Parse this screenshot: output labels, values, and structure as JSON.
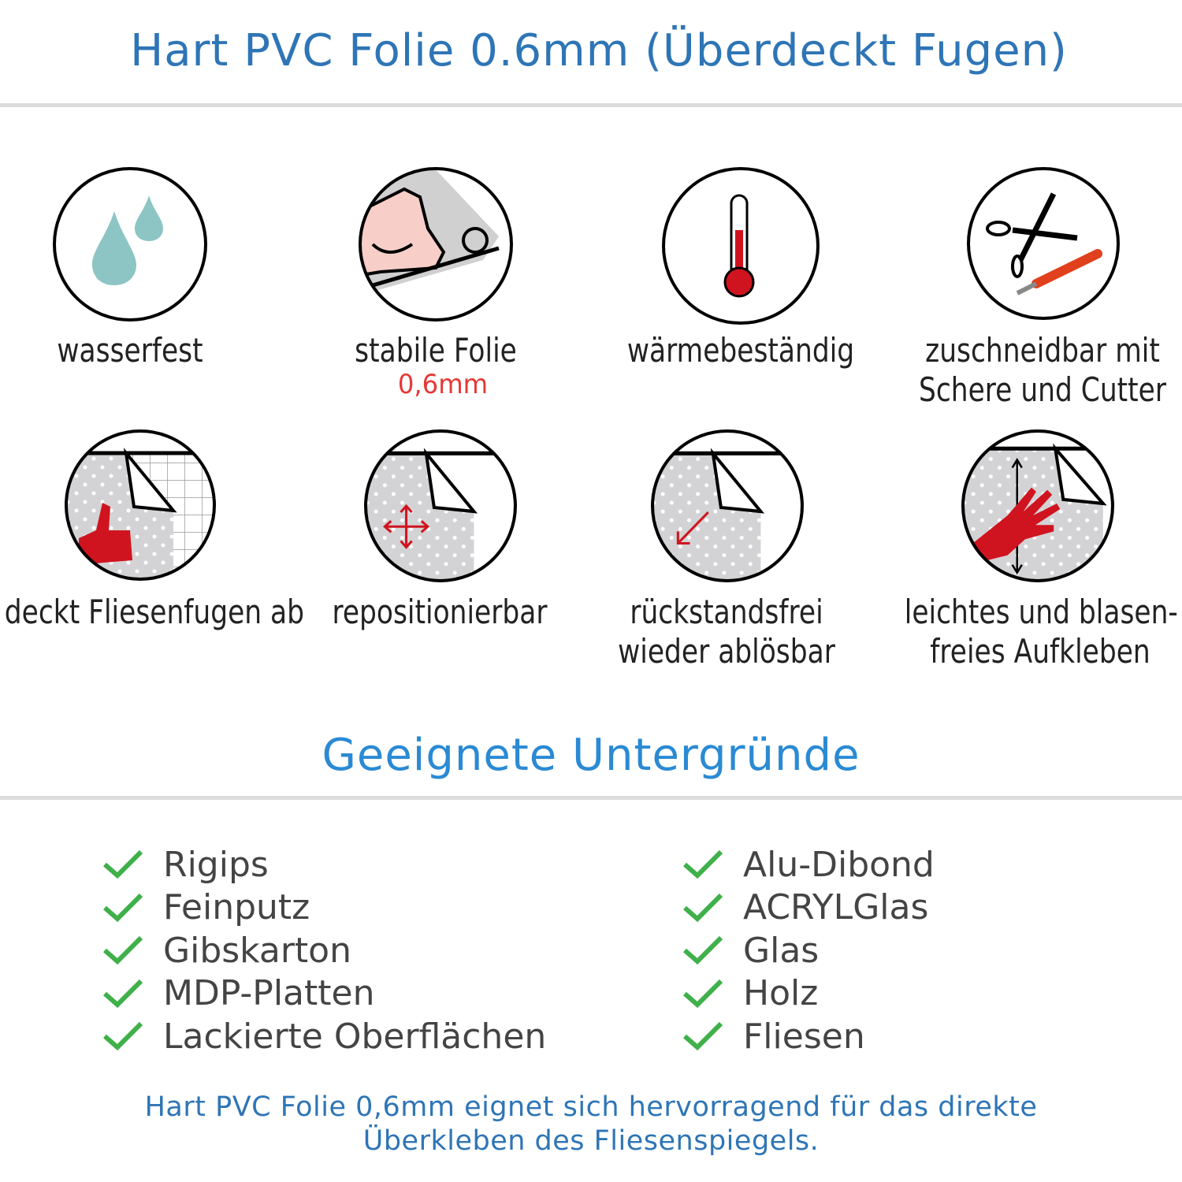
{
  "header": {
    "title": "Hart PVC Folie 0.6mm (Überdeckt Fugen)"
  },
  "features": [
    {
      "icon": "water-drops-icon",
      "label": "wasserfest"
    },
    {
      "icon": "strong-arm-foil-roll-icon",
      "label": "stabile Folie",
      "sub": "0,6mm"
    },
    {
      "icon": "thermometer-icon",
      "label": "wärmebeständig"
    },
    {
      "icon": "scissors-cutter-icon",
      "label": "zuschneidbar mit",
      "label2": "Schere und Cutter"
    },
    {
      "icon": "thumbs-up-tiles-icon",
      "label": "deckt Fliesenfugen ab"
    },
    {
      "icon": "move-arrows-icon",
      "label": "repositionierbar"
    },
    {
      "icon": "peel-arrow-icon",
      "label": "rückstandsfrei",
      "label2": "wieder ablösbar"
    },
    {
      "icon": "hand-smoothing-icon",
      "label": "leichtes und blasen-",
      "label2": "freies Aufkleben"
    }
  ],
  "section": {
    "title": "Geeignete Untergründe"
  },
  "surfaces_left": [
    "Rigips",
    "Feinputz",
    "Gibskarton",
    "MDP-Platten",
    "Lackierte Oberflächen"
  ],
  "surfaces_right": [
    "Alu-Dibond",
    "ACRYLGlas",
    "Glas",
    "Holz",
    "Fliesen"
  ],
  "footer": {
    "line1": "Hart PVC Folie 0,6mm eignet sich hervorragend für das direkte",
    "line2": "Überkleben des Fliesenspiegels."
  },
  "colors": {
    "title": "#2e75b6",
    "heading": "#2a8ad4",
    "check": "#3fb04a",
    "accent_red": "#d0141f",
    "drop": "#8cc5c4"
  }
}
